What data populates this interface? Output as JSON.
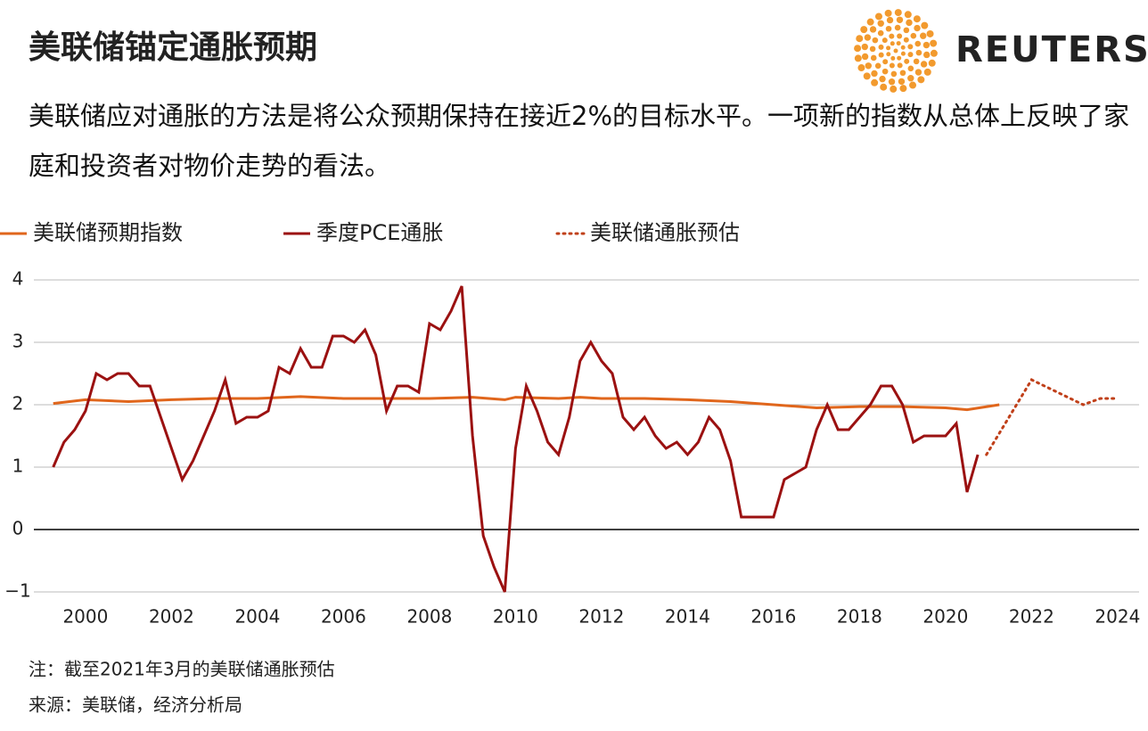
{
  "brand": "REUTERS",
  "chart_data": {
    "type": "line",
    "title": "美联储锚定通胀预期",
    "subtitle": "美联储应对通胀的方法是将公众预期保持在接近2%的目标水平。一项新的指数从总体上反映了家庭和投资者对物价走势的看法。",
    "notes": [
      "注：截至2021年3月的美联储通胀预估",
      "来源：美联储，经济分析局"
    ],
    "xlim": [
      1998.8,
      2024.5
    ],
    "xticks": [
      2000,
      2002,
      2004,
      2006,
      2008,
      2010,
      2012,
      2014,
      2016,
      2018,
      2020,
      2022,
      2024
    ],
    "ylim": [
      -1,
      4
    ],
    "yticks": [
      {
        "value": -1,
        "label": "−1"
      },
      0,
      1,
      2,
      3,
      4
    ],
    "grid": true,
    "legend": "top",
    "series": [
      {
        "name": "美联储预期指数",
        "color": "#e0661c",
        "style": "solid",
        "x": [
          1999.25,
          2000,
          2001,
          2002,
          2003,
          2004,
          2005,
          2006,
          2007,
          2008,
          2009,
          2009.75,
          2010,
          2011,
          2011.5,
          2012,
          2013,
          2014,
          2015,
          2016,
          2017,
          2018,
          2019,
          2020,
          2020.5,
          2021.25
        ],
        "values": [
          2.02,
          2.08,
          2.05,
          2.08,
          2.1,
          2.1,
          2.13,
          2.1,
          2.1,
          2.1,
          2.12,
          2.08,
          2.12,
          2.1,
          2.12,
          2.1,
          2.1,
          2.08,
          2.05,
          2.0,
          1.95,
          1.97,
          1.97,
          1.95,
          1.92,
          2.0
        ]
      },
      {
        "name": "季度PCE通胀",
        "color": "#9b1111",
        "style": "solid",
        "x": [
          1999.25,
          1999.5,
          1999.75,
          2000,
          2000.25,
          2000.5,
          2000.75,
          2001,
          2001.25,
          2001.5,
          2001.75,
          2002,
          2002.25,
          2002.5,
          2002.75,
          2003,
          2003.25,
          2003.5,
          2003.75,
          2004,
          2004.25,
          2004.5,
          2004.75,
          2005,
          2005.25,
          2005.5,
          2005.75,
          2006,
          2006.25,
          2006.5,
          2006.75,
          2007,
          2007.25,
          2007.5,
          2007.75,
          2008,
          2008.25,
          2008.5,
          2008.75,
          2009,
          2009.25,
          2009.5,
          2009.75,
          2010,
          2010.25,
          2010.5,
          2010.75,
          2011,
          2011.25,
          2011.5,
          2011.75,
          2012,
          2012.25,
          2012.5,
          2012.75,
          2013,
          2013.25,
          2013.5,
          2013.75,
          2014,
          2014.25,
          2014.5,
          2014.75,
          2015,
          2015.25,
          2015.5,
          2015.75,
          2016,
          2016.25,
          2016.5,
          2016.75,
          2017,
          2017.25,
          2017.5,
          2017.75,
          2018,
          2018.25,
          2018.5,
          2018.75,
          2019,
          2019.25,
          2019.5,
          2019.75,
          2020,
          2020.25,
          2020.5,
          2020.75
        ],
        "values": [
          1.0,
          1.4,
          1.6,
          1.9,
          2.5,
          2.4,
          2.5,
          2.5,
          2.3,
          2.3,
          1.8,
          1.3,
          0.8,
          1.1,
          1.5,
          1.9,
          2.4,
          1.7,
          1.8,
          1.8,
          1.9,
          2.6,
          2.5,
          2.9,
          2.6,
          2.6,
          3.1,
          3.1,
          3.0,
          3.2,
          2.8,
          1.9,
          2.3,
          2.3,
          2.2,
          3.3,
          3.2,
          3.5,
          3.9,
          1.5,
          -0.1,
          -0.6,
          -1.0,
          1.3,
          2.3,
          1.9,
          1.4,
          1.2,
          1.8,
          2.7,
          3.0,
          2.7,
          2.5,
          1.8,
          1.6,
          1.8,
          1.5,
          1.3,
          1.4,
          1.2,
          1.4,
          1.8,
          1.6,
          1.1,
          0.2,
          0.2,
          0.2,
          0.2,
          0.8,
          0.9,
          1.0,
          1.6,
          2.0,
          1.6,
          1.6,
          1.8,
          2.0,
          2.3,
          2.3,
          2.0,
          1.4,
          1.5,
          1.5,
          1.5,
          1.7,
          0.6,
          1.2
        ]
      },
      {
        "name": "美联储通胀预估",
        "color": "#c0401a",
        "style": "dotted",
        "x": [
          2020.95,
          2022,
          2023.2,
          2023.6,
          2024
        ],
        "values": [
          1.2,
          2.4,
          2.0,
          2.1,
          2.1
        ]
      }
    ]
  }
}
